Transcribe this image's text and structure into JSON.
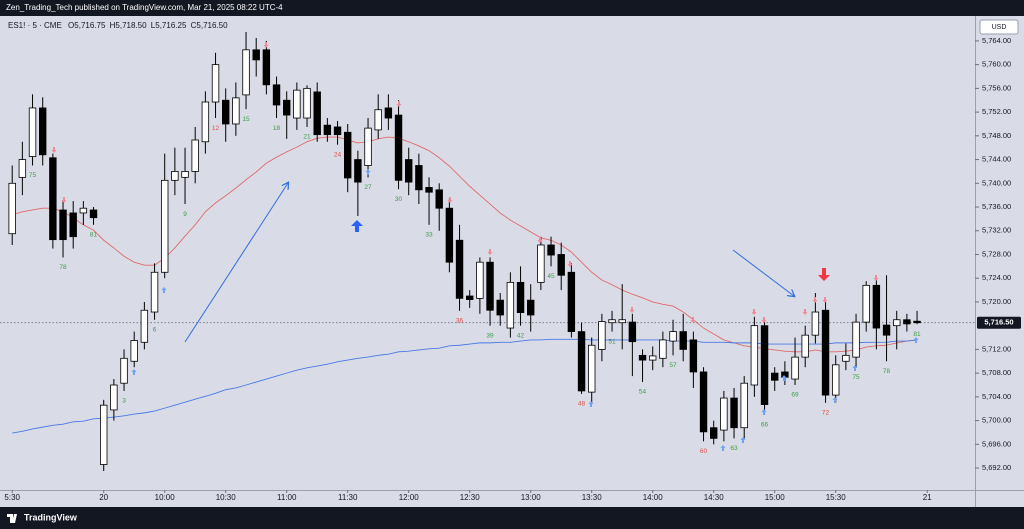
{
  "header": {
    "publisher": "Zen_Trading_Tech published on TradingView.com, Mar 21, 2025 08:22 UTC-4"
  },
  "footer": {
    "brand": "TradingView"
  },
  "chart_data": {
    "type": "candlestick",
    "symbol": "ES1! · 5 · CME",
    "ohlc_legend": [
      {
        "key": "O",
        "value": 5716.75,
        "label": "5,716.75"
      },
      {
        "key": "H",
        "value": 5718.5,
        "label": "5,718.50"
      },
      {
        "key": "L",
        "value": 5716.25,
        "label": "5,716.25"
      },
      {
        "key": "C",
        "value": 5716.5,
        "label": "5,716.50"
      }
    ],
    "currency": "USD",
    "up_color": "#ffffff",
    "down_color": "#000000",
    "open": [
      5731.5,
      5741,
      5744.5,
      5752.7,
      5744.3,
      5735.5,
      5735,
      5735,
      5735.5,
      5692.6,
      5701.8,
      5706.3,
      5710,
      5713.2,
      5718.3,
      5725,
      5740.5,
      5741,
      5742,
      5747,
      5753.7,
      5754,
      5750,
      5754.9,
      5762.5,
      5762.5,
      5756.6,
      5754,
      5751,
      5751,
      5755.4,
      5749.8,
      5749.5,
      5748.6,
      5744,
      5743,
      5749,
      5752.7,
      5751.5,
      5744,
      5743,
      5739.3,
      5738.9,
      5735.8,
      5730.4,
      5721,
      5720.6,
      5726.7,
      5720.3,
      5715.6,
      5723.3,
      5720.3,
      5723.3,
      5729.6,
      5728,
      5725,
      5715,
      5704.8,
      5712,
      5716.5,
      5716.5,
      5716.6,
      5711,
      5710.2,
      5710.5,
      5713.4,
      5715,
      5713.6,
      5708.2,
      5698.8,
      5698.4,
      5703.8,
      5698.8,
      5706,
      5716,
      5708,
      5708.2,
      5707,
      5710.7,
      5714.4,
      5718.6,
      5704.3,
      5710,
      5710.7,
      5716.6,
      5722.8,
      5716.1,
      5716,
      5717,
      5716.75
    ],
    "high": [
      5743,
      5747,
      5755,
      5754.5,
      5745,
      5737,
      5737,
      5737,
      5736,
      5703.5,
      5707,
      5712,
      5715,
      5720,
      5726.5,
      5745,
      5746,
      5746,
      5749.5,
      5755.5,
      5762,
      5756,
      5757,
      5765.5,
      5764.5,
      5764,
      5758,
      5755.5,
      5757,
      5756.5,
      5757,
      5751,
      5750.5,
      5750,
      5745.5,
      5751,
      5755,
      5755,
      5754,
      5746,
      5745,
      5741,
      5740,
      5737.5,
      5733,
      5722,
      5727.5,
      5727.5,
      5721.5,
      5725,
      5726,
      5723,
      5731,
      5731,
      5730,
      5726.5,
      5716.5,
      5714,
      5718,
      5718.5,
      5723,
      5718,
      5712,
      5712.5,
      5715,
      5717,
      5718,
      5715,
      5709,
      5700,
      5705,
      5705.5,
      5707.5,
      5717.5,
      5717,
      5709,
      5710,
      5714,
      5716,
      5721.5,
      5720,
      5711,
      5713,
      5718,
      5723.5,
      5724,
      5724.5,
      5718.5,
      5718,
      5718.5
    ],
    "low": [
      5729.6,
      5738,
      5743,
      5743,
      5729,
      5727.5,
      5729,
      5733,
      5733,
      5691.5,
      5700,
      5705,
      5709,
      5712,
      5717,
      5724,
      5738,
      5736.5,
      5740,
      5745,
      5751,
      5747,
      5748,
      5752.5,
      5758,
      5755,
      5751,
      5747.5,
      5749,
      5749.5,
      5747,
      5747,
      5746.5,
      5738.5,
      5734.5,
      5741,
      5747.5,
      5749,
      5739,
      5738,
      5736.5,
      5733,
      5732,
      5725,
      5718.5,
      5719,
      5718,
      5716,
      5716,
      5714,
      5716,
      5715,
      5722,
      5726,
      5722,
      5714,
      5704.5,
      5703,
      5710,
      5715,
      5712,
      5707.5,
      5706.5,
      5708.5,
      5709,
      5711,
      5710,
      5705.5,
      5696.5,
      5696,
      5696.5,
      5697,
      5697,
      5704,
      5701,
      5705,
      5706,
      5706,
      5709,
      5713,
      5703,
      5703,
      5708.5,
      5709,
      5715,
      5712,
      5710,
      5712,
      5715,
      5716.25
    ],
    "close": [
      5740,
      5744,
      5752.7,
      5744.8,
      5730.5,
      5730.5,
      5731,
      5735.8,
      5734.2,
      5702.6,
      5706,
      5710.5,
      5713.5,
      5718.6,
      5725,
      5740.5,
      5742,
      5742,
      5747.3,
      5753.7,
      5760,
      5750,
      5754.4,
      5762.5,
      5760.8,
      5756.6,
      5753.2,
      5751.5,
      5755.7,
      5756,
      5748.2,
      5748.2,
      5748.2,
      5740.9,
      5740.2,
      5749.3,
      5752.4,
      5751,
      5740.5,
      5740.2,
      5738.9,
      5738.5,
      5735.8,
      5726.7,
      5720.6,
      5720.4,
      5726.7,
      5718.6,
      5717.8,
      5723.3,
      5718.2,
      5717.8,
      5729.6,
      5727.9,
      5724.5,
      5715,
      5705,
      5712.7,
      5716.7,
      5717,
      5717,
      5713.3,
      5710.2,
      5710.9,
      5713.6,
      5715,
      5712,
      5708.2,
      5698.1,
      5697,
      5703.8,
      5698.8,
      5706.3,
      5716,
      5702.7,
      5706.8,
      5707.3,
      5710.7,
      5714.4,
      5718.3,
      5704.3,
      5709.4,
      5711,
      5716.6,
      5722.8,
      5715.6,
      5714.4,
      5717,
      5716.3,
      5716.5
    ],
    "overlays": [
      {
        "color": "#e06a6a",
        "values": [
          5734.7,
          5735.2,
          5735.5,
          5735.8,
          5735.8,
          5735.2,
          5734.2,
          5733.0,
          5732.1,
          5730.4,
          5729.1,
          5727.7,
          5726.7,
          5726.2,
          5726.2,
          5727.4,
          5729.1,
          5731.1,
          5733.0,
          5735.2,
          5736.7,
          5737.9,
          5739.2,
          5740.6,
          5741.9,
          5743.4,
          5744.4,
          5745.3,
          5746.1,
          5747.0,
          5747.6,
          5747.8,
          5747.8,
          5747.3,
          5746.8,
          5747.0,
          5747.5,
          5747.8,
          5747.6,
          5747.0,
          5746.3,
          5745.5,
          5744.3,
          5742.9,
          5741.2,
          5739.5,
          5738.0,
          5736.5,
          5735.0,
          5733.8,
          5732.8,
          5731.8,
          5730.8,
          5730.4,
          5729.6,
          5728.4,
          5726.7,
          5725.0,
          5723.7,
          5722.9,
          5722.0,
          5721.3,
          5720.7,
          5720.0,
          5719.6,
          5719.3,
          5718.3,
          5717.0,
          5715.6,
          5714.6,
          5713.6,
          5713.1,
          5712.6,
          5712.4,
          5712.1,
          5711.9,
          5711.7,
          5711.6,
          5711.6,
          5711.9,
          5711.6,
          5711.6,
          5711.7,
          5711.9,
          5712.4,
          5712.6,
          5712.7,
          5713.1,
          5713.4,
          5713.6
        ]
      },
      {
        "color": "#4a78e6",
        "values": [
          5697.9,
          5698.2,
          5698.6,
          5698.9,
          5699.2,
          5699.4,
          5699.8,
          5699.9,
          5700.3,
          5700.4,
          5700.6,
          5700.8,
          5701.1,
          5701.3,
          5701.6,
          5702.1,
          5702.6,
          5703.1,
          5703.6,
          5704.1,
          5704.6,
          5705.2,
          5705.5,
          5706.0,
          5706.5,
          5707.0,
          5707.5,
          5708.0,
          5708.5,
          5708.9,
          5709.2,
          5709.5,
          5709.9,
          5710.2,
          5710.5,
          5710.7,
          5711.0,
          5711.2,
          5711.6,
          5711.7,
          5711.9,
          5712.1,
          5712.2,
          5712.6,
          5712.7,
          5712.9,
          5713.1,
          5713.1,
          5713.2,
          5713.2,
          5713.4,
          5713.6,
          5713.6,
          5713.7,
          5713.7,
          5713.7,
          5713.7,
          5713.6,
          5713.6,
          5713.6,
          5713.6,
          5713.6,
          5713.6,
          5713.6,
          5713.6,
          5713.4,
          5713.4,
          5713.4,
          5713.2,
          5713.2,
          5713.2,
          5713.1,
          5713.1,
          5713.1,
          5712.9,
          5712.9,
          5712.9,
          5712.9,
          5712.9,
          5712.9,
          5712.9,
          5713.1,
          5713.1,
          5713.1,
          5713.2,
          5713.2,
          5713.2,
          5713.4,
          5713.4,
          5713.6
        ]
      }
    ],
    "last_price": {
      "value": 5716.5,
      "label": "5,716.50"
    },
    "bar_counts": [
      {
        "bar": 2,
        "count": 75,
        "color": "#3f9a48"
      },
      {
        "bar": 5,
        "count": 78,
        "color": "#3f9a48"
      },
      {
        "bar": 8,
        "count": 81,
        "color": "#3f9a48"
      },
      {
        "bar": 11,
        "count": 3,
        "color": "#3f9a48"
      },
      {
        "bar": 14,
        "count": 6,
        "color": "#3f9a48"
      },
      {
        "bar": 17,
        "count": 9,
        "color": "#3f9a48"
      },
      {
        "bar": 20,
        "count": 12,
        "color": "#e0504a"
      },
      {
        "bar": 23,
        "count": 15,
        "color": "#3f9a48"
      },
      {
        "bar": 26,
        "count": 18,
        "color": "#3f9a48"
      },
      {
        "bar": 29,
        "count": 21,
        "color": "#3f9a48"
      },
      {
        "bar": 32,
        "count": 24,
        "color": "#e0504a"
      },
      {
        "bar": 35,
        "count": 27,
        "color": "#3f9a48"
      },
      {
        "bar": 38,
        "count": 30,
        "color": "#3f9a48"
      },
      {
        "bar": 41,
        "count": 33,
        "color": "#3f9a48"
      },
      {
        "bar": 44,
        "count": 36,
        "color": "#e0504a"
      },
      {
        "bar": 47,
        "count": 39,
        "color": "#3f9a48"
      },
      {
        "bar": 50,
        "count": 42,
        "color": "#3f9a48"
      },
      {
        "bar": 53,
        "count": 45,
        "color": "#3f9a48"
      },
      {
        "bar": 56,
        "count": 48,
        "color": "#e0504a"
      },
      {
        "bar": 59,
        "count": 51,
        "color": "#3f9a48"
      },
      {
        "bar": 62,
        "count": 54,
        "color": "#3f9a48"
      },
      {
        "bar": 65,
        "count": 57,
        "color": "#3f9a48"
      },
      {
        "bar": 68,
        "count": 60,
        "color": "#e0504a"
      },
      {
        "bar": 71,
        "count": 63,
        "color": "#3f9a48"
      },
      {
        "bar": 74,
        "count": 66,
        "color": "#3f9a48"
      },
      {
        "bar": 77,
        "count": 69,
        "color": "#3f9a48"
      },
      {
        "bar": 80,
        "count": 72,
        "color": "#e0504a"
      },
      {
        "bar": 83,
        "count": 75,
        "color": "#3f9a48"
      },
      {
        "bar": 86,
        "count": 78,
        "color": "#3f9a48"
      },
      {
        "bar": 89,
        "count": 81,
        "color": "#3f9a48"
      }
    ],
    "ylim": [
      5688.3,
      5768.2
    ],
    "yticks": [
      {
        "value": 5764,
        "label": "5,764.00"
      },
      {
        "value": 5760,
        "label": "5,760.00"
      },
      {
        "value": 5756,
        "label": "5,756.00"
      },
      {
        "value": 5752,
        "label": "5,752.00"
      },
      {
        "value": 5748,
        "label": "5,748.00"
      },
      {
        "value": 5744,
        "label": "5,744.00"
      },
      {
        "value": 5740,
        "label": "5,740.00"
      },
      {
        "value": 5736,
        "label": "5,736.00"
      },
      {
        "value": 5732,
        "label": "5,732.00"
      },
      {
        "value": 5728,
        "label": "5,728.00"
      },
      {
        "value": 5724,
        "label": "5,724.00"
      },
      {
        "value": 5720,
        "label": "5,720.00"
      },
      {
        "value": 5712,
        "label": "5,712.00"
      },
      {
        "value": 5708,
        "label": "5,708.00"
      },
      {
        "value": 5704,
        "label": "5,704.00"
      },
      {
        "value": 5700,
        "label": "5,700.00"
      },
      {
        "value": 5696,
        "label": "5,696.00"
      },
      {
        "value": 5692,
        "label": "5,692.00"
      }
    ],
    "xlim": [
      -1.2,
      94.7
    ],
    "xticks": [
      {
        "value": 0,
        "label": "5:30"
      },
      {
        "value": 9,
        "label": "20"
      },
      {
        "value": 15,
        "label": "10:00"
      },
      {
        "value": 21,
        "label": "10:30"
      },
      {
        "value": 27,
        "label": "11:00"
      },
      {
        "value": 33,
        "label": "11:30"
      },
      {
        "value": 39,
        "label": "12:00"
      },
      {
        "value": 45,
        "label": "12:30"
      },
      {
        "value": 51,
        "label": "13:00"
      },
      {
        "value": 57,
        "label": "13:30"
      },
      {
        "value": 63,
        "label": "14:00"
      },
      {
        "value": 69,
        "label": "14:30"
      },
      {
        "value": 75,
        "label": "15:00"
      },
      {
        "value": 81,
        "label": "15:30"
      },
      {
        "value": 90,
        "label": "21"
      }
    ],
    "grid": false
  }
}
